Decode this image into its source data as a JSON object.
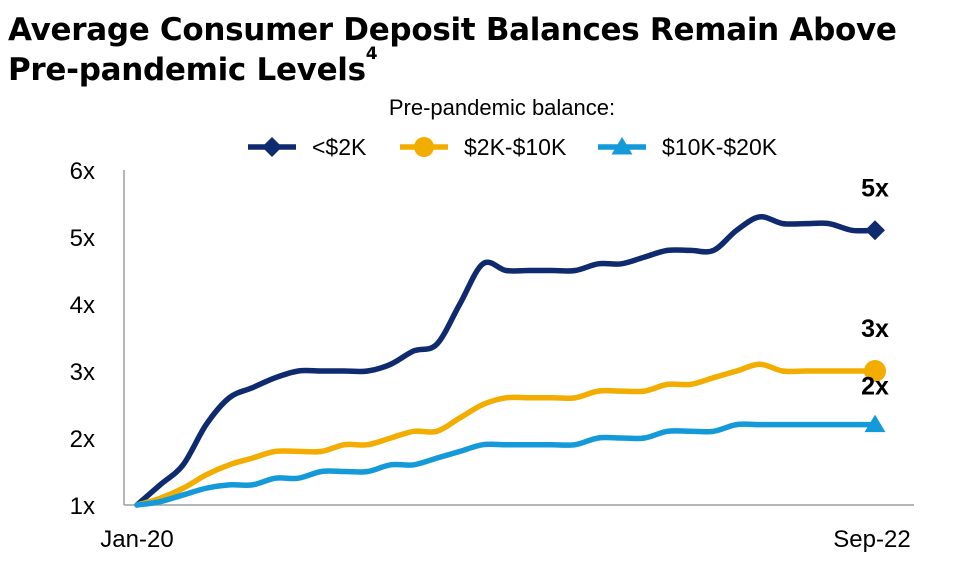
{
  "title": {
    "line1": "Average Consumer Deposit Balances Remain Above",
    "line2": "Pre-pandemic Levels",
    "footnote_marker": "4"
  },
  "legend": {
    "title": "Pre-pandemic balance:"
  },
  "colors": {
    "navy": "#0f2a6e",
    "gold": "#f2ad00",
    "blue": "#149ad9",
    "axis": "#9e9e9e",
    "text": "#000000"
  },
  "chart_data": {
    "type": "line",
    "title": "",
    "xlabel": "",
    "ylabel": "",
    "x_range": [
      "2020-01",
      "2022-09"
    ],
    "ylim": [
      1,
      6
    ],
    "y_ticks": [
      1,
      2,
      3,
      4,
      5,
      6
    ],
    "y_tick_labels": [
      "1x",
      "2x",
      "3x",
      "4x",
      "5x",
      "6x"
    ],
    "x_tick_labels": [
      "Jan-20",
      "Sep-22"
    ],
    "grid": false,
    "legend_position": "top",
    "series": [
      {
        "name": "<$2K",
        "marker": "diamond",
        "color": "#0f2a6e",
        "end_label": "5x",
        "x": [
          "2020-01",
          "2020-02",
          "2020-03",
          "2020-04",
          "2020-05",
          "2020-06",
          "2020-07",
          "2020-08",
          "2020-09",
          "2020-10",
          "2020-11",
          "2020-12",
          "2021-01",
          "2021-02",
          "2021-03",
          "2021-04",
          "2021-05",
          "2021-06",
          "2021-07",
          "2021-08",
          "2021-09",
          "2021-10",
          "2021-11",
          "2021-12",
          "2022-01",
          "2022-02",
          "2022-03",
          "2022-04",
          "2022-05",
          "2022-06",
          "2022-07",
          "2022-08",
          "2022-09"
        ],
        "y": [
          1.0,
          1.3,
          1.6,
          2.2,
          2.6,
          2.75,
          2.9,
          3.0,
          3.0,
          3.0,
          3.0,
          3.1,
          3.3,
          3.4,
          4.0,
          4.6,
          4.5,
          4.5,
          4.5,
          4.5,
          4.6,
          4.6,
          4.7,
          4.8,
          4.8,
          4.8,
          5.1,
          5.3,
          5.2,
          5.2,
          5.2,
          5.1,
          5.1
        ]
      },
      {
        "name": "$2K-$10K",
        "marker": "circle",
        "color": "#f2ad00",
        "end_label": "3x",
        "x": [
          "2020-01",
          "2020-02",
          "2020-03",
          "2020-04",
          "2020-05",
          "2020-06",
          "2020-07",
          "2020-08",
          "2020-09",
          "2020-10",
          "2020-11",
          "2020-12",
          "2021-01",
          "2021-02",
          "2021-03",
          "2021-04",
          "2021-05",
          "2021-06",
          "2021-07",
          "2021-08",
          "2021-09",
          "2021-10",
          "2021-11",
          "2021-12",
          "2022-01",
          "2022-02",
          "2022-03",
          "2022-04",
          "2022-05",
          "2022-06",
          "2022-07",
          "2022-08",
          "2022-09"
        ],
        "y": [
          1.0,
          1.1,
          1.25,
          1.45,
          1.6,
          1.7,
          1.8,
          1.8,
          1.8,
          1.9,
          1.9,
          2.0,
          2.1,
          2.1,
          2.3,
          2.5,
          2.6,
          2.6,
          2.6,
          2.6,
          2.7,
          2.7,
          2.7,
          2.8,
          2.8,
          2.9,
          3.0,
          3.1,
          3.0,
          3.0,
          3.0,
          3.0,
          3.0
        ]
      },
      {
        "name": "$10K-$20K",
        "marker": "triangle",
        "color": "#149ad9",
        "end_label": "2x",
        "x": [
          "2020-01",
          "2020-02",
          "2020-03",
          "2020-04",
          "2020-05",
          "2020-06",
          "2020-07",
          "2020-08",
          "2020-09",
          "2020-10",
          "2020-11",
          "2020-12",
          "2021-01",
          "2021-02",
          "2021-03",
          "2021-04",
          "2021-05",
          "2021-06",
          "2021-07",
          "2021-08",
          "2021-09",
          "2021-10",
          "2021-11",
          "2021-12",
          "2022-01",
          "2022-02",
          "2022-03",
          "2022-04",
          "2022-05",
          "2022-06",
          "2022-07",
          "2022-08",
          "2022-09"
        ],
        "y": [
          1.0,
          1.05,
          1.15,
          1.25,
          1.3,
          1.3,
          1.4,
          1.4,
          1.5,
          1.5,
          1.5,
          1.6,
          1.6,
          1.7,
          1.8,
          1.9,
          1.9,
          1.9,
          1.9,
          1.9,
          2.0,
          2.0,
          2.0,
          2.1,
          2.1,
          2.1,
          2.2,
          2.2,
          2.2,
          2.2,
          2.2,
          2.2,
          2.2
        ]
      }
    ]
  }
}
